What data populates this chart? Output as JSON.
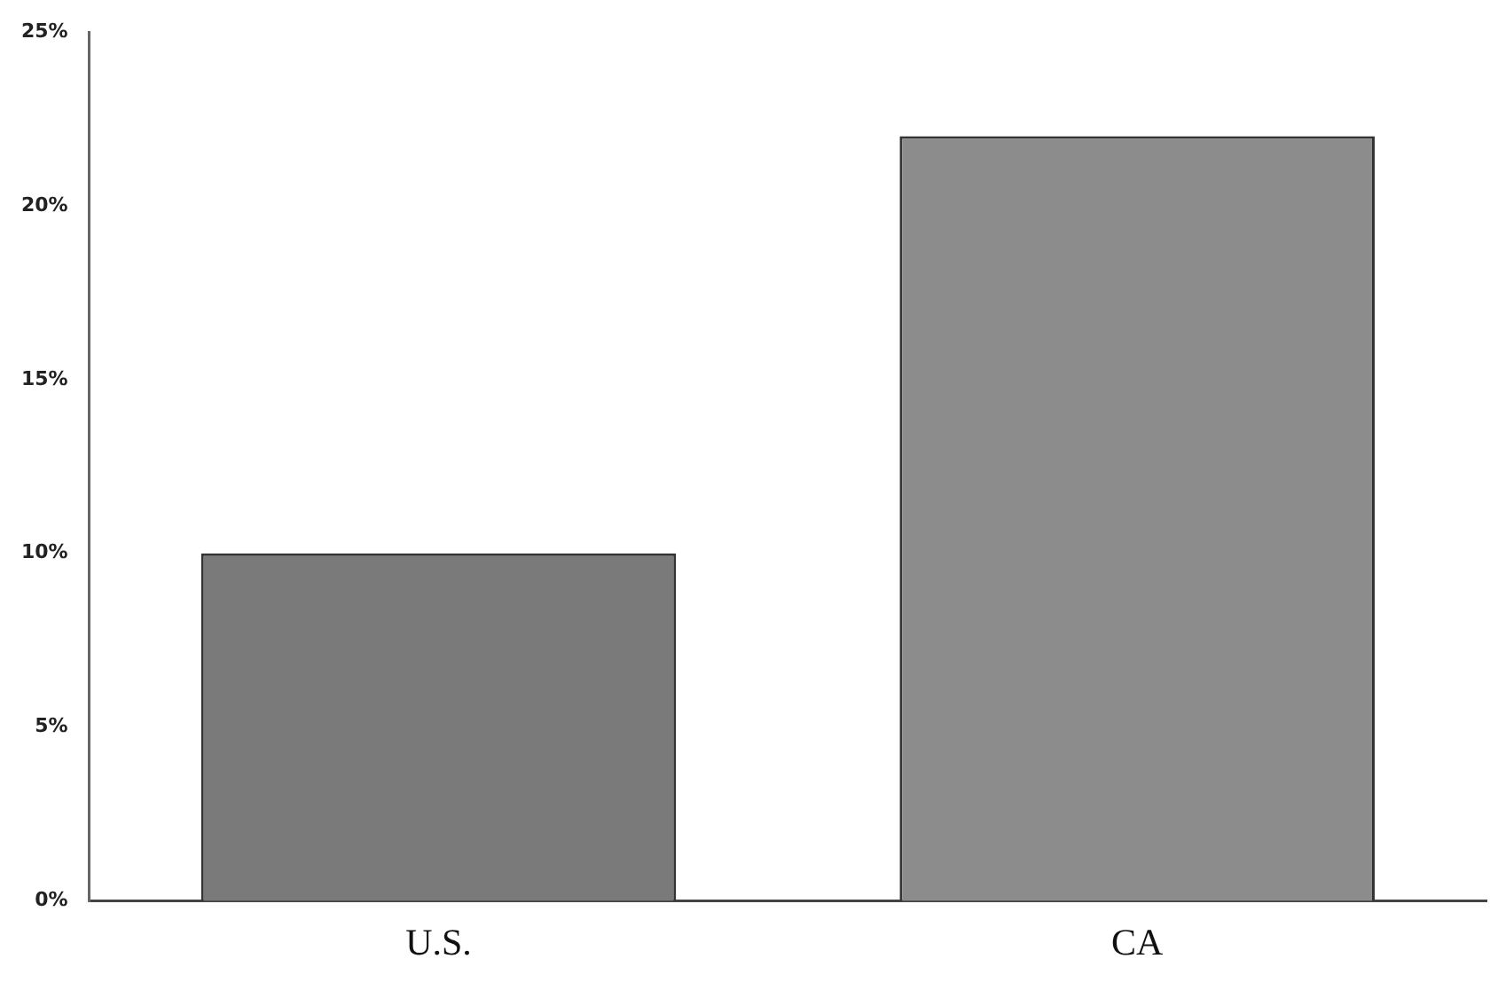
{
  "chart_data": {
    "type": "bar",
    "categories": [
      "U.S.",
      "CA"
    ],
    "values": [
      10,
      22
    ],
    "colors": [
      "#7a7a7a",
      "#8c8c8c"
    ],
    "ylim": [
      0,
      25
    ],
    "yticks": [
      {
        "value": 0,
        "label": "0%"
      },
      {
        "value": 5,
        "label": "5%"
      },
      {
        "value": 10,
        "label": "10%"
      },
      {
        "value": 15,
        "label": "15%"
      },
      {
        "value": 20,
        "label": "20%"
      },
      {
        "value": 25,
        "label": "25%"
      }
    ],
    "grid": false,
    "legend": false
  }
}
